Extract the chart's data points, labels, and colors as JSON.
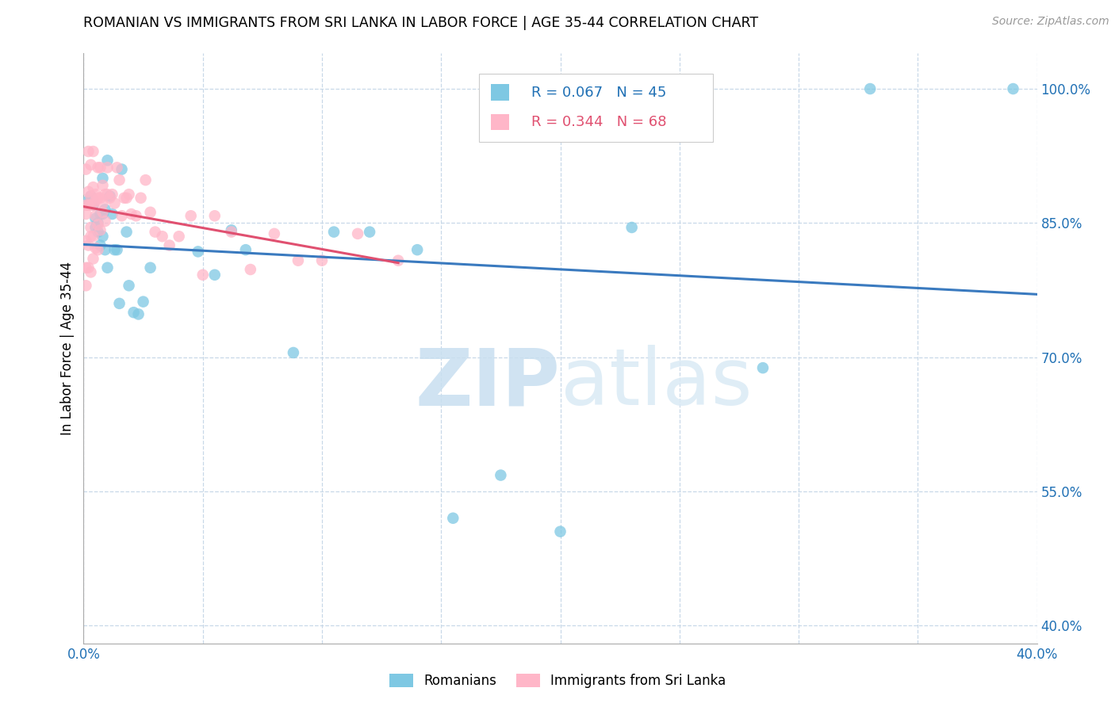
{
  "title": "ROMANIAN VS IMMIGRANTS FROM SRI LANKA IN LABOR FORCE | AGE 35-44 CORRELATION CHART",
  "source": "Source: ZipAtlas.com",
  "ylabel": "In Labor Force | Age 35-44",
  "xlim": [
    0.0,
    0.4
  ],
  "ylim": [
    0.38,
    1.04
  ],
  "xticks": [
    0.0,
    0.05,
    0.1,
    0.15,
    0.2,
    0.25,
    0.3,
    0.35,
    0.4
  ],
  "yticks_right": [
    1.0,
    0.85,
    0.7,
    0.55,
    0.4
  ],
  "ytick_right_labels": [
    "100.0%",
    "85.0%",
    "70.0%",
    "55.0%",
    "40.0%"
  ],
  "blue_R": 0.067,
  "blue_N": 45,
  "pink_R": 0.344,
  "pink_N": 68,
  "blue_color": "#7ec8e3",
  "pink_color": "#ffb6c8",
  "blue_line_color": "#3a7abf",
  "pink_line_color": "#e05070",
  "legend_blue_label": "Romanians",
  "legend_pink_label": "Immigrants from Sri Lanka",
  "watermark_zip": "ZIP",
  "watermark_atlas": "atlas",
  "blue_x": [
    0.002,
    0.003,
    0.003,
    0.004,
    0.004,
    0.005,
    0.005,
    0.006,
    0.006,
    0.007,
    0.007,
    0.008,
    0.008,
    0.008,
    0.009,
    0.009,
    0.01,
    0.01,
    0.011,
    0.012,
    0.013,
    0.014,
    0.015,
    0.016,
    0.018,
    0.019,
    0.021,
    0.023,
    0.025,
    0.028,
    0.048,
    0.055,
    0.062,
    0.068,
    0.088,
    0.105,
    0.12,
    0.14,
    0.155,
    0.175,
    0.2,
    0.23,
    0.285,
    0.33,
    0.39
  ],
  "blue_y": [
    0.875,
    0.88,
    0.875,
    0.87,
    0.875,
    0.845,
    0.855,
    0.85,
    0.84,
    0.86,
    0.825,
    0.9,
    0.86,
    0.835,
    0.865,
    0.82,
    0.8,
    0.92,
    0.88,
    0.86,
    0.82,
    0.82,
    0.76,
    0.91,
    0.84,
    0.78,
    0.75,
    0.748,
    0.762,
    0.8,
    0.818,
    0.792,
    0.842,
    0.82,
    0.705,
    0.84,
    0.84,
    0.82,
    0.52,
    0.568,
    0.505,
    0.845,
    0.688,
    1.0,
    1.0
  ],
  "pink_x": [
    0.001,
    0.001,
    0.001,
    0.001,
    0.001,
    0.001,
    0.002,
    0.002,
    0.002,
    0.002,
    0.002,
    0.003,
    0.003,
    0.003,
    0.003,
    0.003,
    0.003,
    0.004,
    0.004,
    0.004,
    0.004,
    0.004,
    0.005,
    0.005,
    0.005,
    0.005,
    0.006,
    0.006,
    0.006,
    0.006,
    0.007,
    0.007,
    0.007,
    0.008,
    0.008,
    0.008,
    0.009,
    0.009,
    0.01,
    0.01,
    0.011,
    0.012,
    0.013,
    0.014,
    0.015,
    0.016,
    0.017,
    0.018,
    0.019,
    0.02,
    0.022,
    0.024,
    0.026,
    0.028,
    0.03,
    0.033,
    0.036,
    0.04,
    0.045,
    0.05,
    0.055,
    0.062,
    0.07,
    0.08,
    0.09,
    0.1,
    0.115,
    0.132
  ],
  "pink_y": [
    0.87,
    0.91,
    0.86,
    0.83,
    0.78,
    0.8,
    0.885,
    0.93,
    0.87,
    0.825,
    0.8,
    0.915,
    0.88,
    0.845,
    0.835,
    0.795,
    0.87,
    0.87,
    0.835,
    0.93,
    0.89,
    0.81,
    0.882,
    0.858,
    0.822,
    0.875,
    0.912,
    0.878,
    0.848,
    0.82,
    0.912,
    0.878,
    0.842,
    0.892,
    0.872,
    0.862,
    0.882,
    0.852,
    0.912,
    0.882,
    0.878,
    0.882,
    0.872,
    0.912,
    0.898,
    0.858,
    0.878,
    0.878,
    0.882,
    0.86,
    0.858,
    0.878,
    0.898,
    0.862,
    0.84,
    0.835,
    0.825,
    0.835,
    0.858,
    0.792,
    0.858,
    0.84,
    0.798,
    0.838,
    0.808,
    0.808,
    0.838,
    0.808
  ]
}
